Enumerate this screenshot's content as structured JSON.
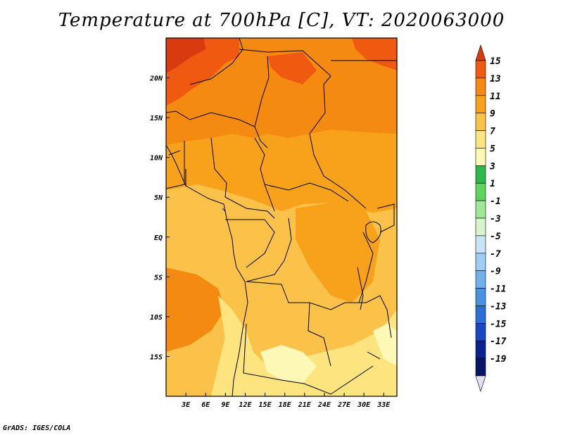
{
  "title": "Temperature at 700hPa [C], VT: 2020063000",
  "credit": "GrADS: IGES/COLA",
  "map": {
    "lon_range": [
      0,
      35
    ],
    "lat_range": [
      -20,
      25
    ],
    "lon_ticks": [
      "3E",
      "6E",
      "9E",
      "12E",
      "15E",
      "18E",
      "21E",
      "24E",
      "27E",
      "30E",
      "33E"
    ],
    "lat_ticks": [
      "20N",
      "15N",
      "10N",
      "5N",
      "EQ",
      "5S",
      "10S",
      "15S"
    ],
    "lon_tick_values": [
      3,
      6,
      9,
      12,
      15,
      18,
      21,
      24,
      27,
      30,
      33
    ],
    "lat_tick_values": [
      20,
      15,
      10,
      5,
      0,
      -5,
      -10,
      -15
    ]
  },
  "colorbar": {
    "labels": [
      "15",
      "13",
      "11",
      "9",
      "7",
      "5",
      "3",
      "1",
      "-1",
      "-3",
      "-5",
      "-7",
      "-9",
      "-11",
      "-13",
      "-15",
      "-17",
      "-19"
    ],
    "colors": [
      "#d93a10",
      "#f05a10",
      "#f58a10",
      "#f7a21a",
      "#fbc24a",
      "#fde47e",
      "#fdf8b6",
      "#2fb84a",
      "#61d460",
      "#9ee896",
      "#d6f5cc",
      "#c8e4f6",
      "#9dcdf2",
      "#6fb1ec",
      "#4892e4",
      "#2a6fd6",
      "#1848c0",
      "#0a2290",
      "#081466",
      "#e0e0f2"
    ]
  }
}
